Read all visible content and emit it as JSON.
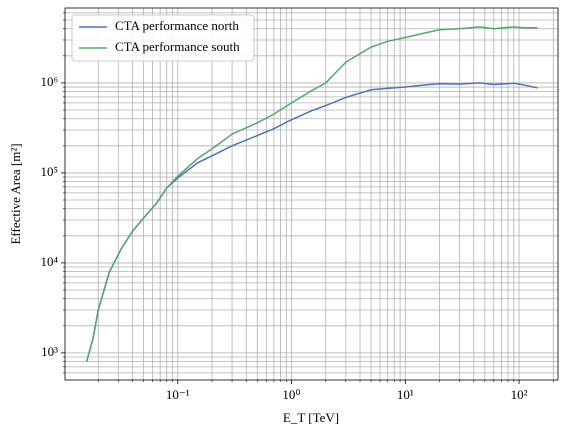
{
  "chart_data": {
    "type": "line",
    "xlabel": "E_T [TeV]",
    "ylabel": "Effective Area [m²]",
    "x": [
      0.0158,
      0.018,
      0.02,
      0.025,
      0.032,
      0.04,
      0.05,
      0.065,
      0.08,
      0.1,
      0.15,
      0.2,
      0.3,
      0.5,
      0.7,
      1,
      1.5,
      2,
      3,
      5,
      7,
      10,
      15,
      20,
      30,
      45,
      60,
      90,
      110,
      145
    ],
    "series": [
      {
        "name": "CTA performance north",
        "color": "#4c72b0",
        "values": [
          800,
          1450,
          3000,
          7900,
          14500,
          22500,
          31500,
          46000,
          68000,
          88000,
          130000,
          155000,
          200000,
          260000,
          310000,
          390000,
          490000,
          560000,
          690000,
          840000,
          870000,
          900000,
          950000,
          980000,
          970000,
          1000000,
          960000,
          990000,
          950000,
          880000
        ]
      },
      {
        "name": "CTA performance south",
        "color": "#55a868",
        "values": [
          800,
          1450,
          3000,
          7900,
          14500,
          22500,
          31500,
          46000,
          68000,
          92000,
          145000,
          185000,
          270000,
          360000,
          450000,
          600000,
          820000,
          1000000,
          1700000,
          2500000,
          2900000,
          3200000,
          3600000,
          3900000,
          4000000,
          4200000,
          4000000,
          4200000,
          4100000,
          4100000
        ]
      }
    ],
    "xscale": "log",
    "yscale": "log",
    "xlim": [
      0.0102,
      220
    ],
    "ylim": [
      500,
      6800000
    ],
    "xticks": [
      {
        "value": 0.1,
        "label": "10⁻¹"
      },
      {
        "value": 1,
        "label": "10⁰"
      },
      {
        "value": 10,
        "label": "10¹"
      },
      {
        "value": 100,
        "label": "10²"
      }
    ],
    "yticks": [
      {
        "value": 1000,
        "label": "10³"
      },
      {
        "value": 10000,
        "label": "10⁴"
      },
      {
        "value": 100000,
        "label": "10⁵"
      },
      {
        "value": 1000000,
        "label": "10⁶"
      }
    ],
    "xminorticks": [
      0.02,
      0.03,
      0.04,
      0.05,
      0.06,
      0.07,
      0.08,
      0.09,
      0.2,
      0.3,
      0.4,
      0.5,
      0.6,
      0.7,
      0.8,
      0.9,
      2,
      3,
      4,
      5,
      6,
      7,
      8,
      9,
      20,
      30,
      40,
      50,
      60,
      70,
      80,
      90,
      200
    ],
    "yminorticks": [
      600,
      700,
      800,
      900,
      2000,
      3000,
      4000,
      5000,
      6000,
      7000,
      8000,
      9000,
      20000,
      30000,
      40000,
      50000,
      60000,
      70000,
      80000,
      90000,
      200000,
      300000,
      400000,
      500000,
      600000,
      700000,
      800000,
      900000,
      2000000,
      3000000,
      4000000,
      5000000,
      6000000
    ],
    "grid": true,
    "legend": "upper left"
  }
}
